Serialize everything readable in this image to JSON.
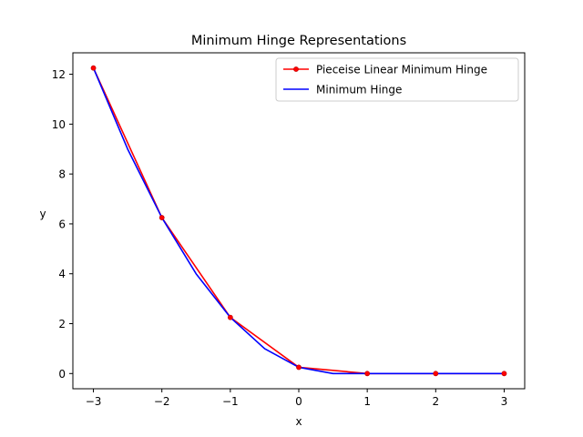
{
  "chart_data": {
    "type": "line",
    "title": "Minimum Hinge Representations",
    "xlabel": "x",
    "ylabel": "y",
    "xlim": [
      -3.3,
      3.3
    ],
    "ylim": [
      -0.61,
      12.86
    ],
    "xticks": [
      -3,
      -2,
      -1,
      0,
      1,
      2,
      3
    ],
    "xtick_labels": [
      "−3",
      "−2",
      "−1",
      "0",
      "1",
      "2",
      "3"
    ],
    "yticks": [
      0,
      2,
      4,
      6,
      8,
      10,
      12
    ],
    "ytick_labels": [
      "0",
      "2",
      "4",
      "6",
      "8",
      "10",
      "12"
    ],
    "grid": false,
    "legend_position": "upper right",
    "series": [
      {
        "name": "Pieceise Linear Minimum Hinge",
        "color": "#ff0000",
        "marker": "point",
        "x": [
          -3,
          -2,
          -1,
          0,
          1,
          2,
          3
        ],
        "y": [
          12.25,
          6.25,
          2.25,
          0.25,
          0.0,
          0.0,
          0.0
        ]
      },
      {
        "name": "Minimum Hinge",
        "color": "#0000ff",
        "marker": "none",
        "function": "smooth minimum hinge (min(x-0.5,0))^2",
        "x": [
          -3.0,
          -2.5,
          -2.0,
          -1.5,
          -1.0,
          -0.5,
          0.0,
          0.5,
          1.0,
          1.5,
          2.0,
          2.5,
          3.0
        ],
        "y": [
          12.25,
          9.0,
          6.25,
          4.0,
          2.25,
          1.0,
          0.25,
          0.0,
          0.0,
          0.0,
          0.0,
          0.0,
          0.0
        ]
      }
    ]
  }
}
